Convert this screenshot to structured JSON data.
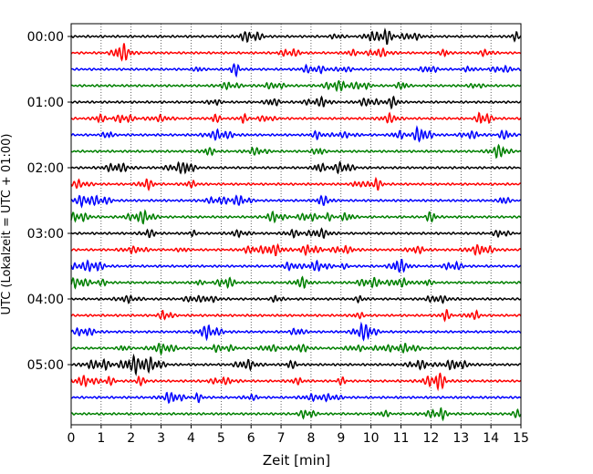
{
  "chart_data": {
    "type": "line",
    "title": "",
    "xlabel": "Zeit  [min]",
    "ylabel": "UTC (Lokalzeit = UTC + 01:00)",
    "xlim": [
      0,
      15
    ],
    "x_ticks": [
      "0",
      "1",
      "2",
      "3",
      "4",
      "5",
      "6",
      "7",
      "8",
      "9",
      "10",
      "11",
      "12",
      "13",
      "14",
      "15"
    ],
    "y_tick_labels": [
      "00:00",
      "01:00",
      "02:00",
      "03:00",
      "04:00",
      "05:00"
    ],
    "grid": "vertical dotted",
    "legend": "none",
    "trace_count": 24,
    "trace_interval_min": 15,
    "trace_colors": [
      "#000000",
      "#ff0000",
      "#0000ff",
      "#008000"
    ],
    "series": [
      {
        "start": "00:00",
        "color": "#000000"
      },
      {
        "start": "00:15",
        "color": "#ff0000"
      },
      {
        "start": "00:30",
        "color": "#0000ff"
      },
      {
        "start": "00:45",
        "color": "#008000"
      },
      {
        "start": "01:00",
        "color": "#000000"
      },
      {
        "start": "01:15",
        "color": "#ff0000"
      },
      {
        "start": "01:30",
        "color": "#0000ff"
      },
      {
        "start": "01:45",
        "color": "#008000"
      },
      {
        "start": "02:00",
        "color": "#000000"
      },
      {
        "start": "02:15",
        "color": "#ff0000"
      },
      {
        "start": "02:30",
        "color": "#0000ff"
      },
      {
        "start": "02:45",
        "color": "#008000"
      },
      {
        "start": "03:00",
        "color": "#000000"
      },
      {
        "start": "03:15",
        "color": "#ff0000"
      },
      {
        "start": "03:30",
        "color": "#0000ff"
      },
      {
        "start": "03:45",
        "color": "#008000"
      },
      {
        "start": "04:00",
        "color": "#000000"
      },
      {
        "start": "04:15",
        "color": "#ff0000"
      },
      {
        "start": "04:30",
        "color": "#0000ff"
      },
      {
        "start": "04:45",
        "color": "#008000"
      },
      {
        "start": "05:00",
        "color": "#000000"
      },
      {
        "start": "05:15",
        "color": "#ff0000"
      },
      {
        "start": "05:30",
        "color": "#0000ff"
      },
      {
        "start": "05:45",
        "color": "#008000"
      }
    ]
  }
}
